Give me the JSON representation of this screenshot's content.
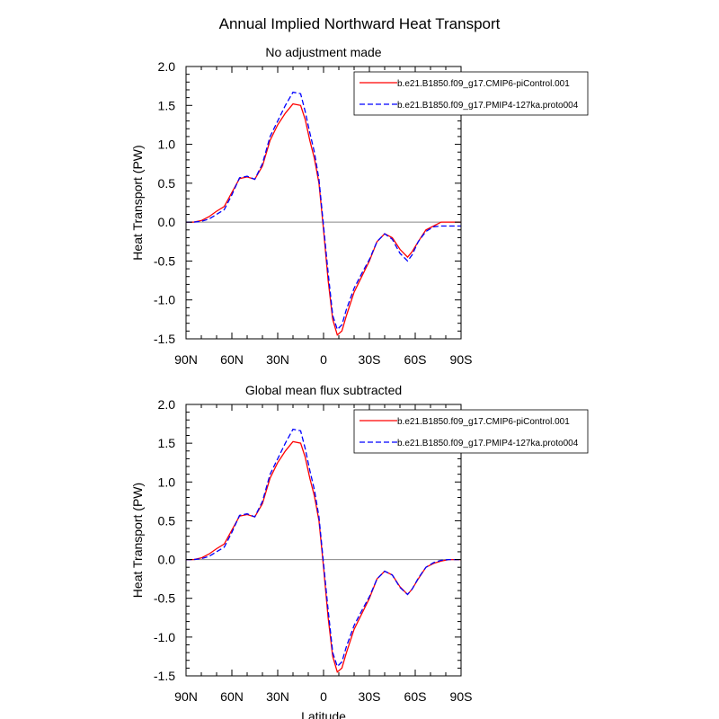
{
  "title": "Annual Implied Northward Heat Transport",
  "xlabel": "Latitude",
  "ylabel": "Heat Transport (PW)",
  "colors": {
    "series1": "#ff0000",
    "series2": "#0000ff",
    "zero_line": "#888888",
    "axis": "#000000"
  },
  "legend_placement": "top-right",
  "legend_entries": [
    "b.e21.B1850.f09_g17.CMIP6-piControl.001",
    "b.e21.B1850.f09_g17.PMIP4-127ka.proto004"
  ],
  "x_tick_labels": [
    "90N",
    "60N",
    "30N",
    "0",
    "30S",
    "60S",
    "90S"
  ],
  "y_tick_labels": [
    "-1.5",
    "-1.0",
    "-0.5",
    "0.0",
    "0.5",
    "1.0",
    "1.5",
    "2.0"
  ],
  "chart_data": [
    {
      "type": "line",
      "title": "No adjustment made",
      "xlim": [
        90,
        -90
      ],
      "ylim": [
        -1.5,
        2.0
      ],
      "x_ticks": [
        90,
        60,
        30,
        0,
        -30,
        -60,
        -90
      ],
      "y_ticks": [
        -1.5,
        -1.0,
        -0.5,
        0.0,
        0.5,
        1.0,
        1.5,
        2.0
      ],
      "x": [
        90,
        85,
        80,
        75,
        70,
        65,
        60,
        55,
        50,
        45,
        40,
        35,
        30,
        25,
        20,
        15,
        12,
        9,
        6,
        3,
        0,
        -3,
        -6,
        -9,
        -12,
        -15,
        -20,
        -25,
        -30,
        -35,
        -40,
        -45,
        -50,
        -55,
        -58,
        -62,
        -67,
        -72,
        -77,
        -82,
        -86,
        -90
      ],
      "series": [
        {
          "name": "b.e21.B1850.f09_g17.CMIP6-piControl.001",
          "style": "solid",
          "values": [
            0.0,
            0.0,
            0.02,
            0.07,
            0.14,
            0.2,
            0.38,
            0.56,
            0.58,
            0.55,
            0.72,
            1.05,
            1.25,
            1.4,
            1.52,
            1.5,
            1.32,
            1.05,
            0.82,
            0.5,
            -0.1,
            -0.75,
            -1.25,
            -1.45,
            -1.4,
            -1.2,
            -0.9,
            -0.7,
            -0.5,
            -0.25,
            -0.15,
            -0.2,
            -0.35,
            -0.45,
            -0.38,
            -0.25,
            -0.1,
            -0.05,
            0.0,
            0.0,
            0.0,
            0.0
          ]
        },
        {
          "name": "b.e21.B1850.f09_g17.PMIP4-127ka.proto004",
          "style": "dashed",
          "values": [
            0.0,
            0.0,
            0.01,
            0.04,
            0.1,
            0.16,
            0.35,
            0.57,
            0.59,
            0.55,
            0.75,
            1.1,
            1.3,
            1.5,
            1.67,
            1.65,
            1.42,
            1.15,
            0.9,
            0.55,
            -0.05,
            -0.65,
            -1.2,
            -1.38,
            -1.32,
            -1.12,
            -0.85,
            -0.66,
            -0.48,
            -0.25,
            -0.15,
            -0.22,
            -0.4,
            -0.5,
            -0.42,
            -0.25,
            -0.12,
            -0.06,
            -0.05,
            -0.05,
            -0.05,
            -0.05
          ]
        }
      ]
    },
    {
      "type": "line",
      "title": "Global mean flux subtracted",
      "xlim": [
        90,
        -90
      ],
      "ylim": [
        -1.5,
        2.0
      ],
      "x_ticks": [
        90,
        60,
        30,
        0,
        -30,
        -60,
        -90
      ],
      "y_ticks": [
        -1.5,
        -1.0,
        -0.5,
        0.0,
        0.5,
        1.0,
        1.5,
        2.0
      ],
      "x": [
        90,
        85,
        80,
        75,
        70,
        65,
        60,
        55,
        50,
        45,
        40,
        35,
        30,
        25,
        20,
        15,
        12,
        9,
        6,
        3,
        0,
        -3,
        -6,
        -9,
        -12,
        -15,
        -20,
        -25,
        -30,
        -35,
        -40,
        -45,
        -50,
        -55,
        -58,
        -62,
        -67,
        -72,
        -77,
        -82,
        -86,
        -90
      ],
      "series": [
        {
          "name": "b.e21.B1850.f09_g17.CMIP6-piControl.001",
          "style": "solid",
          "values": [
            0.0,
            0.0,
            0.02,
            0.07,
            0.14,
            0.2,
            0.38,
            0.56,
            0.58,
            0.55,
            0.72,
            1.05,
            1.25,
            1.4,
            1.52,
            1.5,
            1.32,
            1.05,
            0.82,
            0.5,
            -0.1,
            -0.75,
            -1.25,
            -1.45,
            -1.4,
            -1.2,
            -0.9,
            -0.7,
            -0.5,
            -0.25,
            -0.15,
            -0.2,
            -0.35,
            -0.45,
            -0.38,
            -0.25,
            -0.1,
            -0.05,
            -0.02,
            0.0,
            0.0,
            0.0
          ]
        },
        {
          "name": "b.e21.B1850.f09_g17.PMIP4-127ka.proto004",
          "style": "dashed",
          "values": [
            0.0,
            0.0,
            0.01,
            0.04,
            0.1,
            0.16,
            0.35,
            0.57,
            0.59,
            0.55,
            0.75,
            1.1,
            1.3,
            1.5,
            1.68,
            1.66,
            1.43,
            1.15,
            0.9,
            0.55,
            -0.05,
            -0.65,
            -1.2,
            -1.38,
            -1.32,
            -1.12,
            -0.85,
            -0.66,
            -0.48,
            -0.25,
            -0.15,
            -0.2,
            -0.36,
            -0.45,
            -0.38,
            -0.24,
            -0.1,
            -0.04,
            -0.01,
            0.0,
            0.0,
            0.0
          ]
        }
      ]
    }
  ]
}
